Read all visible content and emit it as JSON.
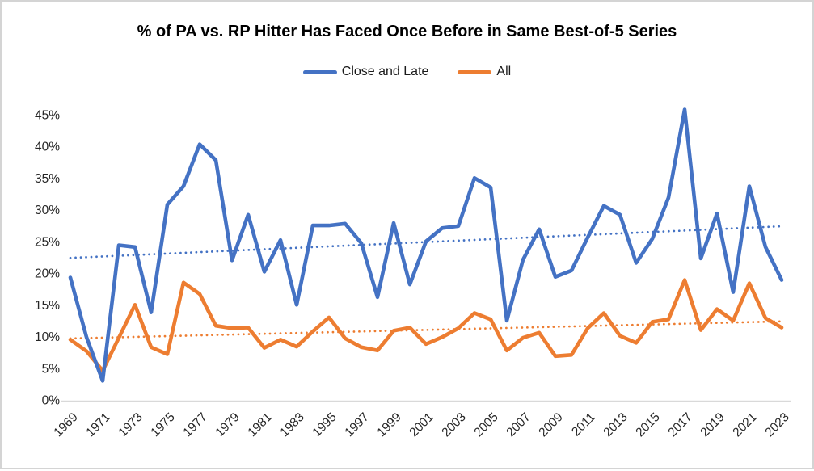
{
  "chart_data": {
    "type": "line",
    "title": "% of PA vs. RP Hitter Has Faced Once Before in Same Best-of-5 Series",
    "xlabel": "",
    "ylabel": "",
    "categories": [
      "1969",
      "1970",
      "1971",
      "1972",
      "1973",
      "1974",
      "1975",
      "1976",
      "1977",
      "1978",
      "1979",
      "1980",
      "1981",
      "1982",
      "1983",
      "1984",
      "1995",
      "1996",
      "1997",
      "1998",
      "1999",
      "2000",
      "2001",
      "2002",
      "2003",
      "2004",
      "2005",
      "2006",
      "2007",
      "2008",
      "2009",
      "2010",
      "2011",
      "2012",
      "2013",
      "2014",
      "2015",
      "2016",
      "2017",
      "2018",
      "2019",
      "2020",
      "2021",
      "2022",
      "2023"
    ],
    "series": [
      {
        "name": "All",
        "color": "#ED7D31",
        "values": [
          9.5,
          7.7,
          4.6,
          9.8,
          15.0,
          8.3,
          7.2,
          18.5,
          16.7,
          11.7,
          11.3,
          11.4,
          8.2,
          9.5,
          8.4,
          10.8,
          13.0,
          9.7,
          8.3,
          7.8,
          10.9,
          11.4,
          8.8,
          9.9,
          11.3,
          13.7,
          12.7,
          7.8,
          9.8,
          10.6,
          6.9,
          7.1,
          11.3,
          13.7,
          10.1,
          9.0,
          12.3,
          12.7,
          18.9,
          11.0,
          14.3,
          12.5,
          18.4,
          12.9,
          11.4
        ]
      },
      {
        "name": "Close and Late",
        "color": "#4472C4",
        "values": [
          19.3,
          9.9,
          3.0,
          24.4,
          24.1,
          13.8,
          30.8,
          33.7,
          40.3,
          37.8,
          22.0,
          29.2,
          20.2,
          25.2,
          15.0,
          27.5,
          27.5,
          27.8,
          24.7,
          16.2,
          27.9,
          18.2,
          25.0,
          27.1,
          27.4,
          35.0,
          33.5,
          12.5,
          22.1,
          26.9,
          19.4,
          20.4,
          25.6,
          30.6,
          29.2,
          21.6,
          25.4,
          31.9,
          45.8,
          22.3,
          29.4,
          17.0,
          33.7,
          24.1,
          18.9
        ]
      }
    ],
    "legend_order": [
      "Close and Late",
      "All"
    ],
    "legend_position": "top-center",
    "trendlines": [
      {
        "series": "All",
        "style": "dotted",
        "color": "#ED7D31",
        "start_value": 9.7,
        "end_value": 12.4
      },
      {
        "series": "Close and Late",
        "style": "dotted",
        "color": "#4472C4",
        "start_value": 22.4,
        "end_value": 27.4
      }
    ],
    "y_axis": {
      "min": 0,
      "max": 45,
      "step": 5,
      "labels": [
        "0%",
        "5%",
        "10%",
        "15%",
        "20%",
        "25%",
        "30%",
        "35%",
        "40%",
        "45%"
      ]
    },
    "x_axis": {
      "tick_every_n_categories": 2,
      "labels": [
        "1969",
        "1971",
        "1973",
        "1975",
        "1977",
        "1979",
        "1981",
        "1983",
        "1995",
        "1997",
        "1999",
        "2001",
        "2003",
        "2005",
        "2007",
        "2009",
        "2011",
        "2013",
        "2015",
        "2017",
        "2019",
        "2021",
        "2023"
      ],
      "label_rotation_deg": -45
    },
    "grid": "off",
    "colors": {
      "background": "#FFFFFF",
      "frame_border": "#D4D4D4",
      "axis_line": "#D9D9D9",
      "axis_text": "#262626",
      "title_text": "#000000"
    }
  }
}
